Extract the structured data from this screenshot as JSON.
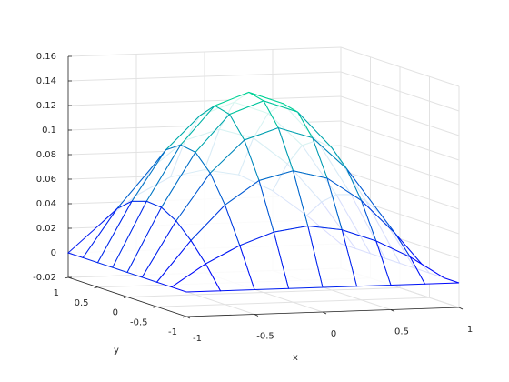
{
  "chart_data": {
    "type": "mesh",
    "x": [
      -1,
      -0.75,
      -0.5,
      -0.25,
      0,
      0.25,
      0.5,
      0.75,
      1
    ],
    "y": [
      -1,
      -0.75,
      -0.5,
      -0.25,
      0,
      0.25,
      0.5,
      0.75,
      1
    ],
    "z": [
      [
        0,
        0,
        0,
        0,
        0,
        0,
        0,
        0,
        0
      ],
      [
        0,
        0.018,
        0.032,
        0.042,
        0.046,
        0.042,
        0.032,
        0.018,
        0
      ],
      [
        0,
        0.033,
        0.061,
        0.08,
        0.087,
        0.08,
        0.061,
        0.033,
        0
      ],
      [
        0,
        0.045,
        0.083,
        0.109,
        0.118,
        0.109,
        0.083,
        0.045,
        0
      ],
      [
        0,
        0.052,
        0.096,
        0.126,
        0.136,
        0.126,
        0.096,
        0.052,
        0
      ],
      [
        0,
        0.053,
        0.098,
        0.129,
        0.139,
        0.129,
        0.098,
        0.053,
        0
      ],
      [
        0,
        0.049,
        0.09,
        0.117,
        0.127,
        0.117,
        0.09,
        0.049,
        0
      ],
      [
        0,
        0.039,
        0.071,
        0.093,
        0.101,
        0.093,
        0.071,
        0.039,
        0
      ],
      [
        0,
        0.024,
        0.045,
        0.059,
        0.064,
        0.059,
        0.045,
        0.024,
        0
      ]
    ],
    "xlim": [
      -1,
      1
    ],
    "ylim": [
      -1,
      1
    ],
    "zlim": [
      -0.02,
      0.16
    ],
    "xticks": [
      -1,
      -0.5,
      0,
      0.5,
      1
    ],
    "yticks": [
      -1,
      -0.5,
      0,
      0.5,
      1
    ],
    "zticks": [
      -0.02,
      0,
      0.02,
      0.04,
      0.06,
      0.08,
      0.1,
      0.12,
      0.14,
      0.16
    ],
    "xlabel": "x",
    "ylabel": "y",
    "colormap": [
      "#0000ff",
      "#00ff80"
    ],
    "grid": true
  }
}
